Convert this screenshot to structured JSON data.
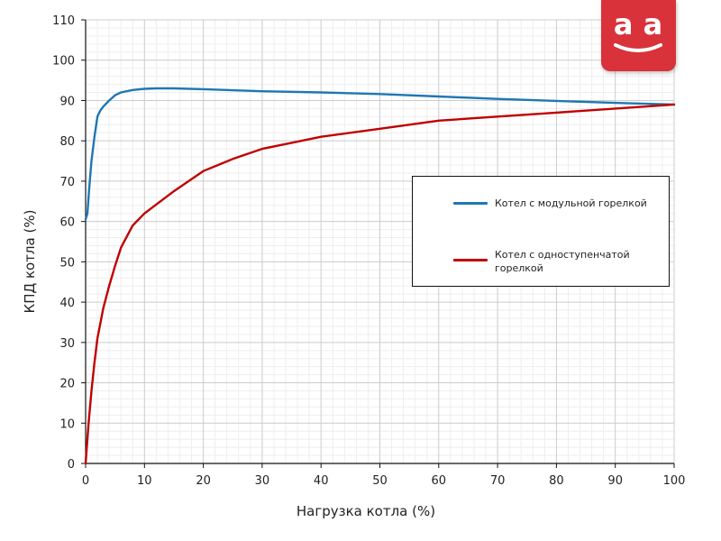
{
  "logo": {
    "text": "a a",
    "icon": "smile-logo-icon",
    "color": "#d9323b"
  },
  "chart_data": {
    "type": "line",
    "xlabel": "Нагрузка котла (%)",
    "ylabel": "КПД котла (%)",
    "xlim": [
      0,
      100
    ],
    "ylim": [
      0,
      110
    ],
    "xticks": [
      "0",
      "10",
      "20",
      "30",
      "40",
      "50",
      "60",
      "70",
      "80",
      "90",
      "100"
    ],
    "yticks": [
      "0",
      "10",
      "20",
      "30",
      "40",
      "50",
      "60",
      "70",
      "80",
      "90",
      "100",
      "110"
    ],
    "grid": true,
    "minor_grid": true,
    "legend_position": "right",
    "series": [
      {
        "name": "Котел с модульной горелкой",
        "color": "#1f77b4",
        "x": [
          0,
          0.3,
          0.6,
          1,
          1.5,
          2,
          2.5,
          3,
          4,
          5,
          6,
          8,
          10,
          12,
          15,
          20,
          30,
          40,
          50,
          60,
          70,
          80,
          90,
          100
        ],
        "y": [
          60.5,
          62,
          68,
          75,
          81,
          86,
          87.5,
          88.5,
          90,
          91.3,
          92,
          92.6,
          92.9,
          93,
          93,
          92.8,
          92.3,
          92,
          91.6,
          91,
          90.4,
          89.9,
          89.4,
          89
        ]
      },
      {
        "name": "Котел с одноступенчатой горелкой",
        "color": "#c00000",
        "x": [
          0,
          0.5,
          1,
          1.5,
          2,
          3,
          4,
          5,
          6,
          8,
          10,
          15,
          20,
          25,
          30,
          35,
          40,
          50,
          60,
          70,
          80,
          90,
          100
        ],
        "y": [
          0,
          10,
          18,
          25,
          31,
          38.5,
          44,
          49,
          53.5,
          59,
          62,
          67.5,
          72.5,
          75.5,
          78,
          79.5,
          81,
          83,
          85,
          86,
          87,
          88,
          89
        ]
      }
    ]
  }
}
